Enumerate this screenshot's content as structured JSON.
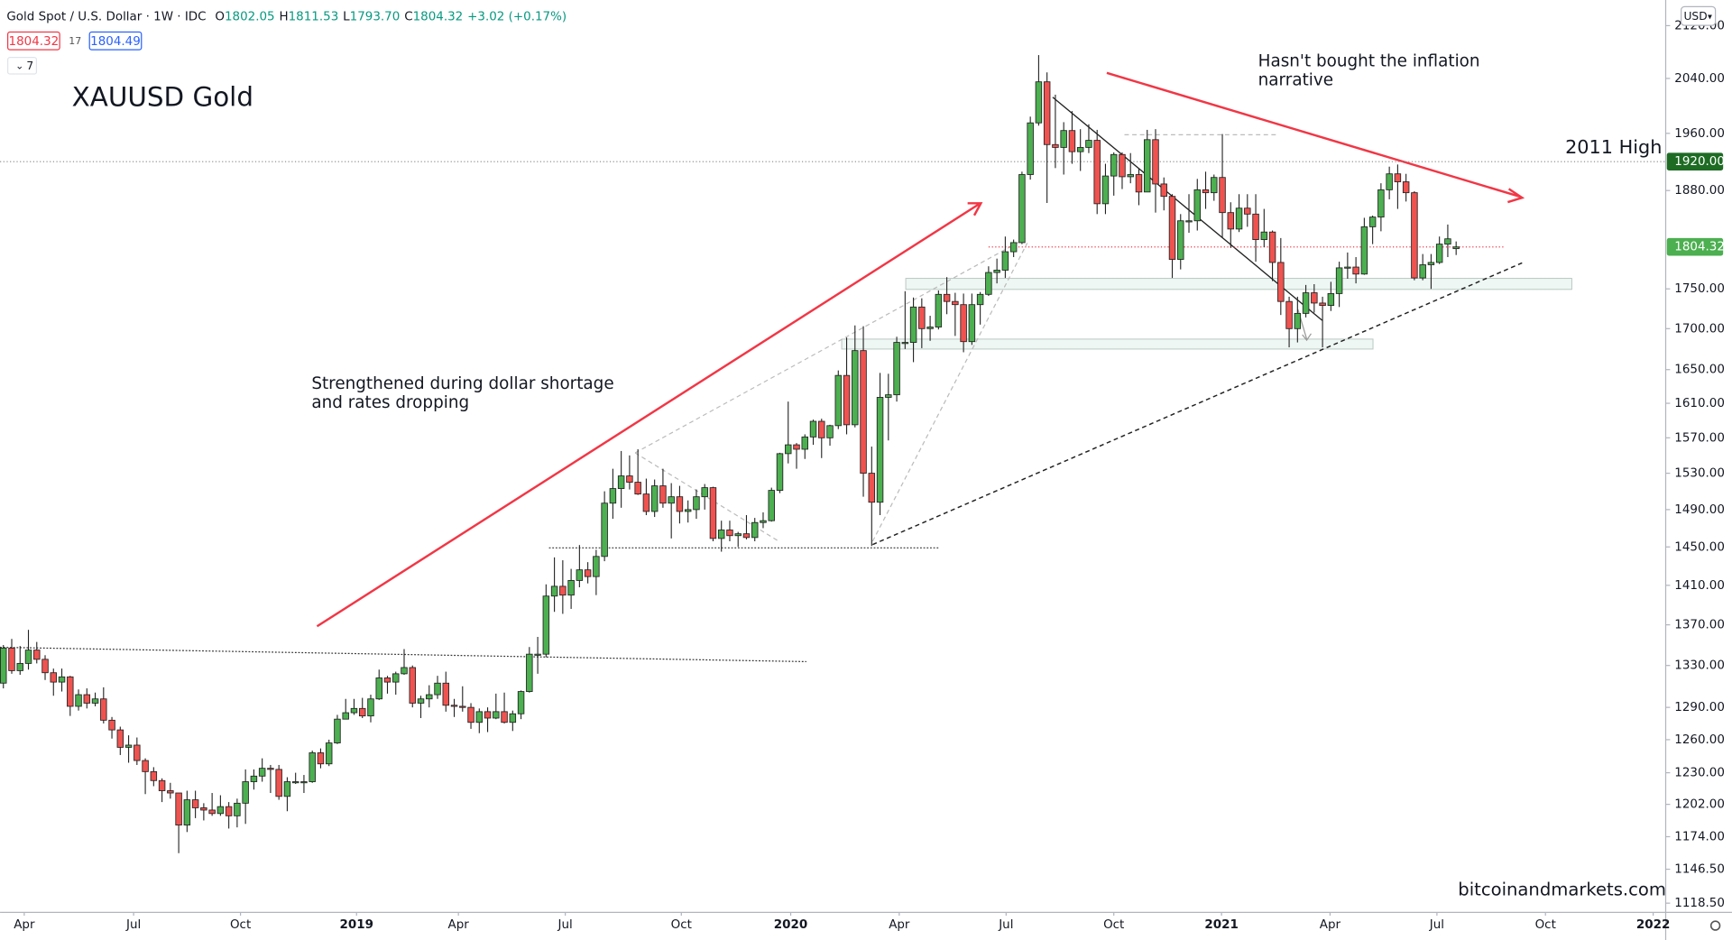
{
  "header": {
    "symbol": "Gold Spot / U.S. Dollar · 1W · IDC",
    "fields": [
      {
        "label": "O",
        "value": "1802.05"
      },
      {
        "label": "H",
        "value": "1811.53"
      },
      {
        "label": "L",
        "value": "1793.70"
      },
      {
        "label": "C",
        "value": "1804.32"
      }
    ],
    "change": "+3.02 (+0.17%)",
    "bid": "1804.32",
    "spread": "17",
    "ask": "1804.49",
    "indicators": "7",
    "currency": "USD"
  },
  "chart_data": {
    "type": "candlestick",
    "title": "XAUUSD Gold",
    "log": true,
    "grid": false,
    "up_color": "#4caf50",
    "down_color": "#ef5350",
    "annotations": {
      "left": [
        "Strengthened during dollar shortage",
        "and rates dropping"
      ],
      "right": [
        "Hasn't bought the inflation",
        "narrative"
      ],
      "high": "2011 High",
      "credit": "bitcoinandmarkets.com"
    },
    "price_lines": [
      {
        "value": 1920,
        "label": "1920.00",
        "color": "#1e6b24"
      },
      {
        "value": 1804.32,
        "label": "1804.32",
        "color": "#4caf50"
      }
    ],
    "xlim": [
      -0.4,
      199.1
    ],
    "ylim": [
      1111,
      2160
    ],
    "xticks": [
      {
        "value": 2.5,
        "label": "Apr"
      },
      {
        "value": 15.6,
        "label": "Jul"
      },
      {
        "value": 28.4,
        "label": "Oct"
      },
      {
        "value": 42.3,
        "label": "2019"
      },
      {
        "value": 54.5,
        "label": "Apr"
      },
      {
        "value": 67.3,
        "label": "Jul"
      },
      {
        "value": 81.2,
        "label": "Oct"
      },
      {
        "value": 94.3,
        "label": "2020"
      },
      {
        "value": 107.3,
        "label": "Apr"
      },
      {
        "value": 120.1,
        "label": "Jul"
      },
      {
        "value": 133.0,
        "label": "Oct"
      },
      {
        "value": 145.9,
        "label": "2021"
      },
      {
        "value": 158.9,
        "label": "Apr"
      },
      {
        "value": 171.7,
        "label": "Jul"
      },
      {
        "value": 184.7,
        "label": "Oct"
      },
      {
        "value": 197.6,
        "label": "2022"
      }
    ],
    "yticks": [
      {
        "value": 2120,
        "label": "2120.00"
      },
      {
        "value": 2040,
        "label": "2040.00"
      },
      {
        "value": 1960,
        "label": "1960.00"
      },
      {
        "value": 1880,
        "label": "1880.00"
      },
      {
        "value": 1750,
        "label": "1750.00"
      },
      {
        "value": 1700,
        "label": "1700.00"
      },
      {
        "value": 1650,
        "label": "1650.00"
      },
      {
        "value": 1610,
        "label": "1610.00"
      },
      {
        "value": 1570,
        "label": "1570.00"
      },
      {
        "value": 1530,
        "label": "1530.00"
      },
      {
        "value": 1490,
        "label": "1490.00"
      },
      {
        "value": 1450,
        "label": "1450.00"
      },
      {
        "value": 1410,
        "label": "1410.00"
      },
      {
        "value": 1370,
        "label": "1370.00"
      },
      {
        "value": 1330,
        "label": "1330.00"
      },
      {
        "value": 1290,
        "label": "1290.00"
      },
      {
        "value": 1260,
        "label": "1260.00"
      },
      {
        "value": 1230,
        "label": "1230.00"
      },
      {
        "value": 1202,
        "label": "1202.00"
      },
      {
        "value": 1174,
        "label": "1174.00"
      },
      {
        "value": 1146.5,
        "label": "1146.50"
      },
      {
        "value": 1118.5,
        "label": "1118.50"
      }
    ],
    "ohlc": [
      [
        1313,
        1350,
        1308,
        1347
      ],
      [
        1347,
        1356,
        1322,
        1325
      ],
      [
        1325,
        1349,
        1321,
        1332
      ],
      [
        1332,
        1365,
        1326,
        1345
      ],
      [
        1345,
        1353,
        1332,
        1336
      ],
      [
        1336,
        1340,
        1316,
        1323
      ],
      [
        1323,
        1327,
        1301,
        1314
      ],
      [
        1314,
        1327,
        1305,
        1319
      ],
      [
        1319,
        1320,
        1282,
        1291
      ],
      [
        1291,
        1307,
        1287,
        1302
      ],
      [
        1302,
        1308,
        1289,
        1294
      ],
      [
        1294,
        1304,
        1291,
        1298
      ],
      [
        1298,
        1309,
        1275,
        1278
      ],
      [
        1278,
        1281,
        1261,
        1269
      ],
      [
        1269,
        1272,
        1246,
        1253
      ],
      [
        1253,
        1264,
        1239,
        1255
      ],
      [
        1255,
        1262,
        1237,
        1241
      ],
      [
        1241,
        1243,
        1211,
        1231
      ],
      [
        1231,
        1235,
        1218,
        1223
      ],
      [
        1223,
        1225,
        1204,
        1214
      ],
      [
        1214,
        1221,
        1207,
        1212
      ],
      [
        1212,
        1212,
        1160,
        1184
      ],
      [
        1184,
        1214,
        1178,
        1206
      ],
      [
        1206,
        1214,
        1190,
        1199
      ],
      [
        1199,
        1203,
        1188,
        1197
      ],
      [
        1197,
        1212,
        1192,
        1194
      ],
      [
        1194,
        1210,
        1192,
        1200
      ],
      [
        1200,
        1204,
        1181,
        1192
      ],
      [
        1192,
        1207,
        1182,
        1203
      ],
      [
        1203,
        1233,
        1185,
        1222
      ],
      [
        1222,
        1233,
        1215,
        1227
      ],
      [
        1227,
        1243,
        1222,
        1234
      ],
      [
        1234,
        1237,
        1212,
        1233
      ],
      [
        1233,
        1237,
        1206,
        1209
      ],
      [
        1209,
        1226,
        1196,
        1222
      ],
      [
        1222,
        1230,
        1220,
        1222
      ],
      [
        1222,
        1228,
        1212,
        1222
      ],
      [
        1222,
        1250,
        1221,
        1248
      ],
      [
        1248,
        1252,
        1234,
        1238
      ],
      [
        1238,
        1260,
        1236,
        1257
      ],
      [
        1257,
        1283,
        1256,
        1279
      ],
      [
        1279,
        1298,
        1279,
        1285
      ],
      [
        1285,
        1298,
        1283,
        1289
      ],
      [
        1289,
        1299,
        1280,
        1282
      ],
      [
        1282,
        1302,
        1276,
        1298
      ],
      [
        1298,
        1326,
        1297,
        1318
      ],
      [
        1318,
        1320,
        1303,
        1314
      ],
      [
        1314,
        1324,
        1302,
        1322
      ],
      [
        1322,
        1346,
        1321,
        1328
      ],
      [
        1328,
        1330,
        1290,
        1294
      ],
      [
        1294,
        1301,
        1280,
        1298
      ],
      [
        1298,
        1311,
        1290,
        1302
      ],
      [
        1302,
        1320,
        1298,
        1313
      ],
      [
        1313,
        1324,
        1286,
        1292
      ],
      [
        1292,
        1298,
        1281,
        1291
      ],
      [
        1291,
        1310,
        1286,
        1290
      ],
      [
        1290,
        1294,
        1270,
        1276
      ],
      [
        1276,
        1289,
        1266,
        1286
      ],
      [
        1286,
        1290,
        1267,
        1280
      ],
      [
        1280,
        1303,
        1279,
        1286
      ],
      [
        1286,
        1304,
        1275,
        1276
      ],
      [
        1276,
        1287,
        1268,
        1284
      ],
      [
        1284,
        1306,
        1279,
        1305
      ],
      [
        1305,
        1348,
        1304,
        1341
      ],
      [
        1341,
        1358,
        1322,
        1341
      ],
      [
        1341,
        1411,
        1338,
        1399
      ],
      [
        1399,
        1439,
        1383,
        1409
      ],
      [
        1409,
        1436,
        1381,
        1400
      ],
      [
        1400,
        1427,
        1386,
        1415
      ],
      [
        1415,
        1452,
        1408,
        1426
      ],
      [
        1426,
        1434,
        1412,
        1419
      ],
      [
        1419,
        1447,
        1400,
        1440
      ],
      [
        1440,
        1510,
        1435,
        1497
      ],
      [
        1497,
        1535,
        1480,
        1513
      ],
      [
        1513,
        1555,
        1492,
        1527
      ],
      [
        1527,
        1550,
        1512,
        1520
      ],
      [
        1520,
        1557,
        1506,
        1507
      ],
      [
        1507,
        1524,
        1484,
        1488
      ],
      [
        1488,
        1523,
        1482,
        1516
      ],
      [
        1516,
        1535,
        1492,
        1497
      ],
      [
        1497,
        1519,
        1459,
        1504
      ],
      [
        1504,
        1516,
        1475,
        1488
      ],
      [
        1488,
        1500,
        1476,
        1490
      ],
      [
        1490,
        1512,
        1480,
        1504
      ],
      [
        1504,
        1518,
        1490,
        1514
      ],
      [
        1514,
        1515,
        1456,
        1459
      ],
      [
        1459,
        1478,
        1445,
        1468
      ],
      [
        1468,
        1478,
        1456,
        1462
      ],
      [
        1462,
        1466,
        1450,
        1464
      ],
      [
        1464,
        1484,
        1458,
        1460
      ],
      [
        1460,
        1481,
        1456,
        1476
      ],
      [
        1476,
        1487,
        1470,
        1478
      ],
      [
        1478,
        1514,
        1477,
        1511
      ],
      [
        1511,
        1553,
        1508,
        1552
      ],
      [
        1552,
        1612,
        1541,
        1562
      ],
      [
        1562,
        1564,
        1535,
        1557
      ],
      [
        1557,
        1574,
        1546,
        1571
      ],
      [
        1571,
        1591,
        1562,
        1589
      ],
      [
        1589,
        1592,
        1547,
        1570
      ],
      [
        1570,
        1585,
        1561,
        1584
      ],
      [
        1584,
        1649,
        1580,
        1643
      ],
      [
        1643,
        1689,
        1574,
        1585
      ],
      [
        1585,
        1704,
        1582,
        1673
      ],
      [
        1673,
        1703,
        1504,
        1530
      ],
      [
        1530,
        1560,
        1451,
        1498
      ],
      [
        1498,
        1646,
        1484,
        1617
      ],
      [
        1617,
        1645,
        1567,
        1620
      ],
      [
        1620,
        1690,
        1612,
        1683
      ],
      [
        1683,
        1747,
        1675,
        1683
      ],
      [
        1683,
        1739,
        1659,
        1727
      ],
      [
        1727,
        1738,
        1676,
        1700
      ],
      [
        1700,
        1716,
        1685,
        1702
      ],
      [
        1702,
        1748,
        1699,
        1743
      ],
      [
        1743,
        1765,
        1718,
        1734
      ],
      [
        1734,
        1745,
        1691,
        1730
      ],
      [
        1730,
        1744,
        1671,
        1684
      ],
      [
        1684,
        1744,
        1680,
        1730
      ],
      [
        1730,
        1746,
        1705,
        1743
      ],
      [
        1743,
        1779,
        1741,
        1771
      ],
      [
        1771,
        1789,
        1757,
        1774
      ],
      [
        1774,
        1818,
        1764,
        1798
      ],
      [
        1798,
        1814,
        1791,
        1810
      ],
      [
        1810,
        1906,
        1808,
        1902
      ],
      [
        1902,
        1984,
        1895,
        1975
      ],
      [
        1975,
        2075,
        1971,
        2035
      ],
      [
        2035,
        2049,
        1863,
        1944
      ],
      [
        1944,
        2016,
        1911,
        1940
      ],
      [
        1940,
        1976,
        1902,
        1964
      ],
      [
        1964,
        1992,
        1917,
        1934
      ],
      [
        1934,
        1966,
        1907,
        1940
      ],
      [
        1940,
        1973,
        1932,
        1950
      ],
      [
        1950,
        1965,
        1848,
        1862
      ],
      [
        1862,
        1917,
        1848,
        1900
      ],
      [
        1900,
        1933,
        1873,
        1930
      ],
      [
        1930,
        1933,
        1882,
        1899
      ],
      [
        1899,
        1932,
        1890,
        1902
      ],
      [
        1902,
        1910,
        1860,
        1878
      ],
      [
        1878,
        1965,
        1878,
        1951
      ],
      [
        1951,
        1966,
        1850,
        1889
      ],
      [
        1889,
        1898,
        1853,
        1872
      ],
      [
        1872,
        1875,
        1764,
        1788
      ],
      [
        1788,
        1848,
        1775,
        1839
      ],
      [
        1839,
        1875,
        1823,
        1839
      ],
      [
        1839,
        1896,
        1826,
        1881
      ],
      [
        1881,
        1906,
        1855,
        1877
      ],
      [
        1877,
        1902,
        1866,
        1898
      ],
      [
        1898,
        1959,
        1816,
        1850
      ],
      [
        1850,
        1864,
        1803,
        1828
      ],
      [
        1828,
        1875,
        1824,
        1856
      ],
      [
        1856,
        1875,
        1831,
        1848
      ],
      [
        1848,
        1875,
        1785,
        1814
      ],
      [
        1814,
        1855,
        1804,
        1824
      ],
      [
        1824,
        1826,
        1760,
        1784
      ],
      [
        1784,
        1816,
        1717,
        1734
      ],
      [
        1734,
        1740,
        1677,
        1700
      ],
      [
        1700,
        1740,
        1683,
        1719
      ],
      [
        1719,
        1755,
        1714,
        1745
      ],
      [
        1745,
        1756,
        1720,
        1732
      ],
      [
        1732,
        1740,
        1677,
        1729
      ],
      [
        1729,
        1759,
        1722,
        1744
      ],
      [
        1744,
        1785,
        1727,
        1777
      ],
      [
        1777,
        1797,
        1763,
        1778
      ],
      [
        1778,
        1791,
        1757,
        1769
      ],
      [
        1769,
        1843,
        1768,
        1831
      ],
      [
        1831,
        1846,
        1808,
        1844
      ],
      [
        1844,
        1890,
        1825,
        1881
      ],
      [
        1881,
        1913,
        1868,
        1903
      ],
      [
        1903,
        1916,
        1855,
        1892
      ],
      [
        1892,
        1903,
        1865,
        1877
      ],
      [
        1877,
        1879,
        1761,
        1764
      ],
      [
        1764,
        1795,
        1761,
        1781
      ],
      [
        1781,
        1795,
        1750,
        1784
      ],
      [
        1784,
        1818,
        1782,
        1808
      ],
      [
        1808,
        1834,
        1791,
        1815
      ],
      [
        1802.05,
        1811.53,
        1793.7,
        1804.32
      ]
    ]
  }
}
